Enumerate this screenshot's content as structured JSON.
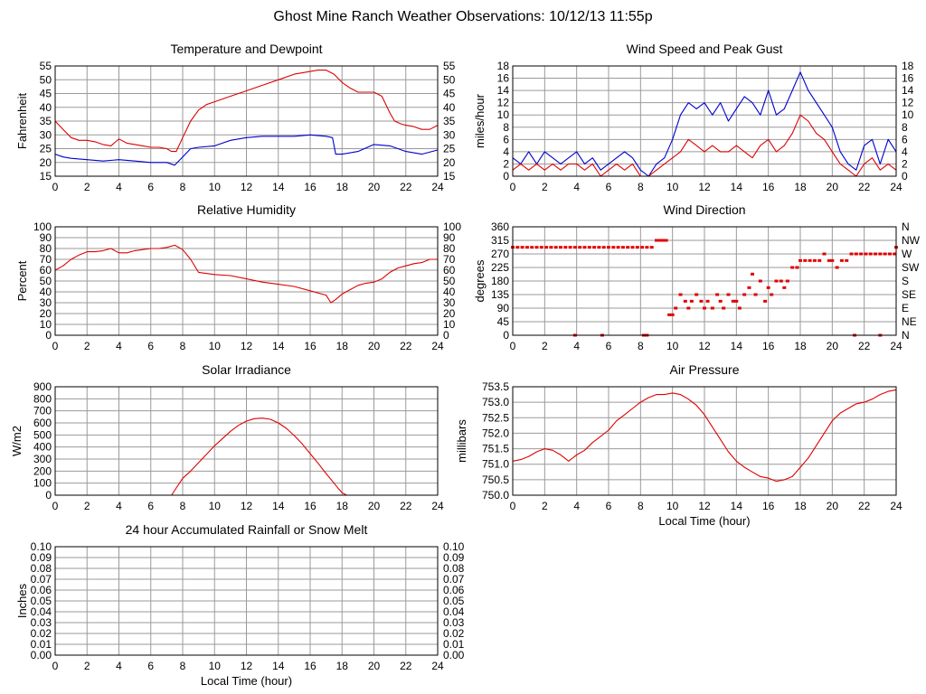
{
  "page": {
    "title": "Ghost Mine Ranch Weather Observations: 10/12/13 11:55p"
  },
  "colors": {
    "red": "#e00000",
    "blue": "#0000d0",
    "grid": "#9a9a9a"
  },
  "chart_data": [
    {
      "id": "temp",
      "type": "line",
      "title": "Temperature and Dewpoint",
      "xlabel": "",
      "ylabel": "Fahrenheit",
      "xlim": [
        0,
        24
      ],
      "ylim": [
        15,
        55
      ],
      "xticks": [
        0,
        2,
        4,
        6,
        8,
        10,
        12,
        14,
        16,
        18,
        20,
        22,
        24
      ],
      "yticks": [
        15,
        20,
        25,
        30,
        35,
        40,
        45,
        50,
        55
      ],
      "right_axis": true,
      "grid": true,
      "series": [
        {
          "color": "#e00000",
          "x": [
            0,
            0.5,
            1,
            1.5,
            2,
            2.5,
            3,
            3.5,
            4,
            4.5,
            5,
            5.5,
            6,
            6.5,
            7,
            7.3,
            7.6,
            8,
            8.5,
            9,
            9.5,
            10,
            11,
            12,
            13,
            14,
            15,
            16,
            16.5,
            17,
            17.5,
            18,
            18.5,
            19,
            19.5,
            20,
            20.5,
            21,
            21.3,
            21.7,
            22,
            22.5,
            23,
            23.5,
            24
          ],
          "y": [
            35,
            32,
            29,
            28,
            28,
            27.5,
            26.5,
            26,
            28.5,
            27,
            26.5,
            26,
            25.5,
            25.5,
            25,
            24,
            24,
            29,
            35,
            39,
            41,
            42,
            44,
            46,
            48,
            50,
            52,
            53,
            53.5,
            53.5,
            52,
            49,
            47,
            45.5,
            45.5,
            45.5,
            44,
            38,
            35,
            34,
            33.5,
            33,
            32,
            32,
            33.5
          ]
        },
        {
          "color": "#0000d0",
          "x": [
            0,
            0.5,
            1,
            2,
            3,
            4,
            5,
            6,
            7,
            7.5,
            8,
            8.5,
            9,
            10,
            11,
            12,
            13,
            14,
            15,
            16,
            17,
            17.4,
            17.6,
            18,
            19,
            20,
            21,
            22,
            23,
            24
          ],
          "y": [
            23,
            22,
            21.5,
            21,
            20.5,
            21,
            20.5,
            20,
            20,
            19,
            22,
            25,
            25.5,
            26,
            28,
            29,
            29.5,
            29.5,
            29.5,
            30,
            29.5,
            29,
            23,
            23,
            24,
            26.5,
            26,
            24,
            23,
            24.5
          ]
        }
      ]
    },
    {
      "id": "wind",
      "type": "line",
      "title": "Wind Speed and Peak Gust",
      "xlabel": "",
      "ylabel": "miles/hour",
      "xlim": [
        0,
        24
      ],
      "ylim": [
        0,
        18
      ],
      "xticks": [
        0,
        2,
        4,
        6,
        8,
        10,
        12,
        14,
        16,
        18,
        20,
        22,
        24
      ],
      "yticks": [
        0,
        2,
        4,
        6,
        8,
        10,
        12,
        14,
        16,
        18
      ],
      "right_axis": true,
      "grid": true,
      "series": [
        {
          "color": "#0000d0",
          "x": [
            0,
            0.5,
            1,
            1.5,
            2,
            2.5,
            3,
            3.5,
            4,
            4.5,
            5,
            5.5,
            6,
            6.5,
            7,
            7.5,
            8,
            8.5,
            9,
            9.5,
            10,
            10.5,
            11,
            11.5,
            12,
            12.5,
            13,
            13.5,
            14,
            14.5,
            15,
            15.5,
            16,
            16.5,
            17,
            17.5,
            18,
            18.5,
            19,
            19.5,
            20,
            20.5,
            21,
            21.5,
            22,
            22.5,
            23,
            23.5,
            24
          ],
          "y": [
            3,
            2,
            4,
            2,
            4,
            3,
            2,
            3,
            4,
            2,
            3,
            1,
            2,
            3,
            4,
            3,
            1,
            0,
            2,
            3,
            6,
            10,
            12,
            11,
            12,
            10,
            12,
            9,
            11,
            13,
            12,
            10,
            14,
            10,
            11,
            14,
            17,
            14,
            12,
            10,
            8,
            4,
            2,
            1,
            5,
            6,
            2,
            6,
            4
          ]
        },
        {
          "color": "#e00000",
          "x": [
            0,
            0.5,
            1,
            1.5,
            2,
            2.5,
            3,
            3.5,
            4,
            4.5,
            5,
            5.5,
            6,
            6.5,
            7,
            7.5,
            8,
            8.5,
            9,
            9.5,
            10,
            10.5,
            11,
            11.5,
            12,
            12.5,
            13,
            13.5,
            14,
            14.5,
            15,
            15.5,
            16,
            16.5,
            17,
            17.5,
            18,
            18.5,
            19,
            19.5,
            20,
            20.5,
            21,
            21.5,
            22,
            22.5,
            23,
            23.5,
            24
          ],
          "y": [
            1,
            2,
            1,
            2,
            1,
            2,
            1,
            2,
            2,
            1,
            2,
            0,
            1,
            2,
            1,
            2,
            0,
            0,
            1,
            2,
            3,
            4,
            6,
            5,
            4,
            5,
            4,
            4,
            5,
            4,
            3,
            5,
            6,
            4,
            5,
            7,
            10,
            9,
            7,
            6,
            4,
            2,
            1,
            0,
            2,
            3,
            1,
            2,
            1
          ]
        }
      ]
    },
    {
      "id": "humidity",
      "type": "line",
      "title": "Relative Humidity",
      "xlabel": "",
      "ylabel": "Percent",
      "xlim": [
        0,
        24
      ],
      "ylim": [
        0,
        100
      ],
      "xticks": [
        0,
        2,
        4,
        6,
        8,
        10,
        12,
        14,
        16,
        18,
        20,
        22,
        24
      ],
      "yticks": [
        0,
        10,
        20,
        30,
        40,
        50,
        60,
        70,
        80,
        90,
        100
      ],
      "right_axis": true,
      "grid": true,
      "series": [
        {
          "color": "#e00000",
          "x": [
            0,
            0.5,
            1,
            1.5,
            2,
            2.5,
            3,
            3.5,
            4,
            4.5,
            5,
            5.5,
            6,
            6.5,
            7,
            7.5,
            8,
            8.5,
            9,
            10,
            11,
            12,
            13,
            14,
            15,
            16,
            17,
            17.3,
            17.6,
            18,
            18.5,
            19,
            19.5,
            20,
            20.5,
            21,
            21.5,
            22,
            22.5,
            23,
            23.5,
            24
          ],
          "y": [
            60,
            64,
            70,
            74,
            77,
            77,
            78,
            80,
            76,
            76,
            78,
            79,
            80,
            80,
            81,
            83,
            79,
            70,
            58,
            56,
            55,
            52,
            49,
            47,
            45,
            41,
            37,
            30,
            33,
            38,
            42,
            46,
            48,
            49,
            52,
            58,
            62,
            64,
            66,
            67,
            70,
            70
          ]
        }
      ]
    },
    {
      "id": "direction",
      "type": "scatter",
      "title": "Wind Direction",
      "xlabel": "",
      "ylabel": "degrees",
      "xlim": [
        0,
        24
      ],
      "ylim": [
        0,
        360
      ],
      "xticks": [
        0,
        2,
        4,
        6,
        8,
        10,
        12,
        14,
        16,
        18,
        20,
        22,
        24
      ],
      "yticks": [
        0,
        45,
        90,
        135,
        180,
        225,
        270,
        315,
        360
      ],
      "right_labels": [
        "N",
        "NE",
        "E",
        "SE",
        "S",
        "SW",
        "W",
        "NW",
        "N"
      ],
      "grid": true,
      "series": [
        {
          "color": "#e00000",
          "x": [
            0,
            0.3,
            0.6,
            0.9,
            1.2,
            1.5,
            1.8,
            2.1,
            2.4,
            2.7,
            3,
            3.3,
            3.6,
            3.9,
            4.2,
            4.5,
            4.8,
            5.1,
            5.4,
            5.7,
            6,
            6.3,
            6.6,
            6.9,
            7.2,
            7.5,
            7.8,
            8.1,
            8.4,
            8.7,
            9,
            9.2,
            9.4,
            9.6,
            3.9,
            5.6,
            8.2,
            8.4,
            9.8,
            10,
            10.2,
            10.5,
            10.8,
            11,
            11.2,
            11.5,
            11.8,
            12,
            12.2,
            12.5,
            12.8,
            13,
            13.2,
            13.5,
            13.8,
            14,
            14.2,
            14.5,
            14.8,
            15,
            15.2,
            15.5,
            15.8,
            16,
            16.2,
            16.5,
            16.8,
            17,
            17.2,
            17.5,
            17.8,
            18,
            18.3,
            18.6,
            18.9,
            19.2,
            19.5,
            19.8,
            20,
            20.3,
            20.6,
            20.9,
            21.2,
            21.5,
            21.8,
            22.1,
            22.4,
            22.7,
            23,
            23.3,
            23.6,
            23.9,
            24,
            21.4,
            23
          ],
          "y": [
            292,
            292,
            292,
            292,
            292,
            292,
            292,
            292,
            292,
            292,
            292,
            292,
            292,
            292,
            292,
            292,
            292,
            292,
            292,
            292,
            292,
            292,
            292,
            292,
            292,
            292,
            292,
            292,
            292,
            292,
            315,
            315,
            315,
            315,
            0,
            0,
            0,
            0,
            68,
            68,
            90,
            135,
            113,
            90,
            113,
            135,
            113,
            90,
            113,
            90,
            135,
            113,
            90,
            135,
            113,
            113,
            90,
            135,
            158,
            203,
            135,
            180,
            113,
            158,
            135,
            180,
            180,
            158,
            180,
            225,
            225,
            248,
            248,
            248,
            248,
            248,
            270,
            248,
            248,
            225,
            248,
            248,
            270,
            270,
            270,
            270,
            270,
            270,
            270,
            270,
            270,
            270,
            292,
            0,
            0
          ]
        }
      ]
    },
    {
      "id": "solar",
      "type": "line",
      "title": "Solar Irradiance",
      "xlabel": "",
      "ylabel": "W/m2",
      "xlim": [
        0,
        24
      ],
      "ylim": [
        0,
        900
      ],
      "xticks": [
        0,
        2,
        4,
        6,
        8,
        10,
        12,
        14,
        16,
        18,
        20,
        22,
        24
      ],
      "yticks": [
        0,
        100,
        200,
        300,
        400,
        500,
        600,
        700,
        800,
        900
      ],
      "right_axis": false,
      "grid": true,
      "series": [
        {
          "color": "#e00000",
          "x": [
            0,
            2,
            4,
            6,
            7.3,
            7.6,
            8,
            8.5,
            9,
            9.5,
            10,
            10.5,
            11,
            11.5,
            12,
            12.5,
            13,
            13.5,
            14,
            14.5,
            15,
            15.5,
            16,
            16.5,
            17,
            17.5,
            17.8,
            18,
            18.3,
            20,
            22,
            24
          ],
          "y": [
            0,
            0,
            0,
            0,
            0,
            60,
            140,
            200,
            270,
            340,
            410,
            470,
            530,
            580,
            615,
            635,
            640,
            630,
            600,
            555,
            495,
            425,
            345,
            265,
            180,
            100,
            50,
            20,
            0,
            0,
            0,
            0
          ]
        }
      ]
    },
    {
      "id": "pressure",
      "type": "line",
      "title": "Air Pressure",
      "xlabel": "Local Time (hour)",
      "ylabel": "millibars",
      "xlim": [
        0,
        24
      ],
      "ylim": [
        750.0,
        753.5
      ],
      "xticks": [
        0,
        2,
        4,
        6,
        8,
        10,
        12,
        14,
        16,
        18,
        20,
        22,
        24
      ],
      "yticks": [
        750.0,
        750.5,
        751.0,
        751.5,
        752.0,
        752.5,
        753.0,
        753.5
      ],
      "right_axis": false,
      "grid": true,
      "series": [
        {
          "color": "#e00000",
          "x": [
            0,
            0.5,
            1,
            1.5,
            2,
            2.5,
            3,
            3.5,
            4,
            4.5,
            5,
            5.5,
            6,
            6.5,
            7,
            7.5,
            8,
            8.5,
            9,
            9.5,
            10,
            10.5,
            11,
            11.5,
            12,
            12.5,
            13,
            13.5,
            14,
            14.5,
            15,
            15.5,
            16,
            16.5,
            17,
            17.5,
            18,
            18.5,
            19,
            19.5,
            20,
            20.5,
            21,
            21.5,
            22,
            22.5,
            23,
            23.5,
            24
          ],
          "y": [
            751.1,
            751.15,
            751.25,
            751.4,
            751.5,
            751.45,
            751.3,
            751.1,
            751.3,
            751.45,
            751.7,
            751.9,
            752.1,
            752.4,
            752.6,
            752.8,
            753.0,
            753.15,
            753.25,
            753.25,
            753.3,
            753.25,
            753.1,
            752.9,
            752.6,
            752.2,
            751.8,
            751.4,
            751.1,
            750.9,
            750.75,
            750.6,
            750.55,
            750.45,
            750.5,
            750.6,
            750.9,
            751.2,
            751.6,
            752.0,
            752.4,
            752.65,
            752.8,
            752.95,
            753.0,
            753.1,
            753.25,
            753.35,
            753.4
          ]
        }
      ]
    },
    {
      "id": "rain",
      "type": "line",
      "title": "24 hour Accumulated Rainfall or Snow Melt",
      "xlabel": "Local Time (hour)",
      "ylabel": "Inches",
      "xlim": [
        0,
        24
      ],
      "ylim": [
        0,
        0.1
      ],
      "xticks": [
        0,
        2,
        4,
        6,
        8,
        10,
        12,
        14,
        16,
        18,
        20,
        22,
        24
      ],
      "yticks": [
        0.0,
        0.01,
        0.02,
        0.03,
        0.04,
        0.05,
        0.06,
        0.07,
        0.08,
        0.09,
        0.1
      ],
      "right_axis": true,
      "grid": true,
      "series": [
        {
          "color": "#e00000",
          "x": [
            0,
            24
          ],
          "y": [
            0,
            0
          ]
        }
      ]
    }
  ]
}
